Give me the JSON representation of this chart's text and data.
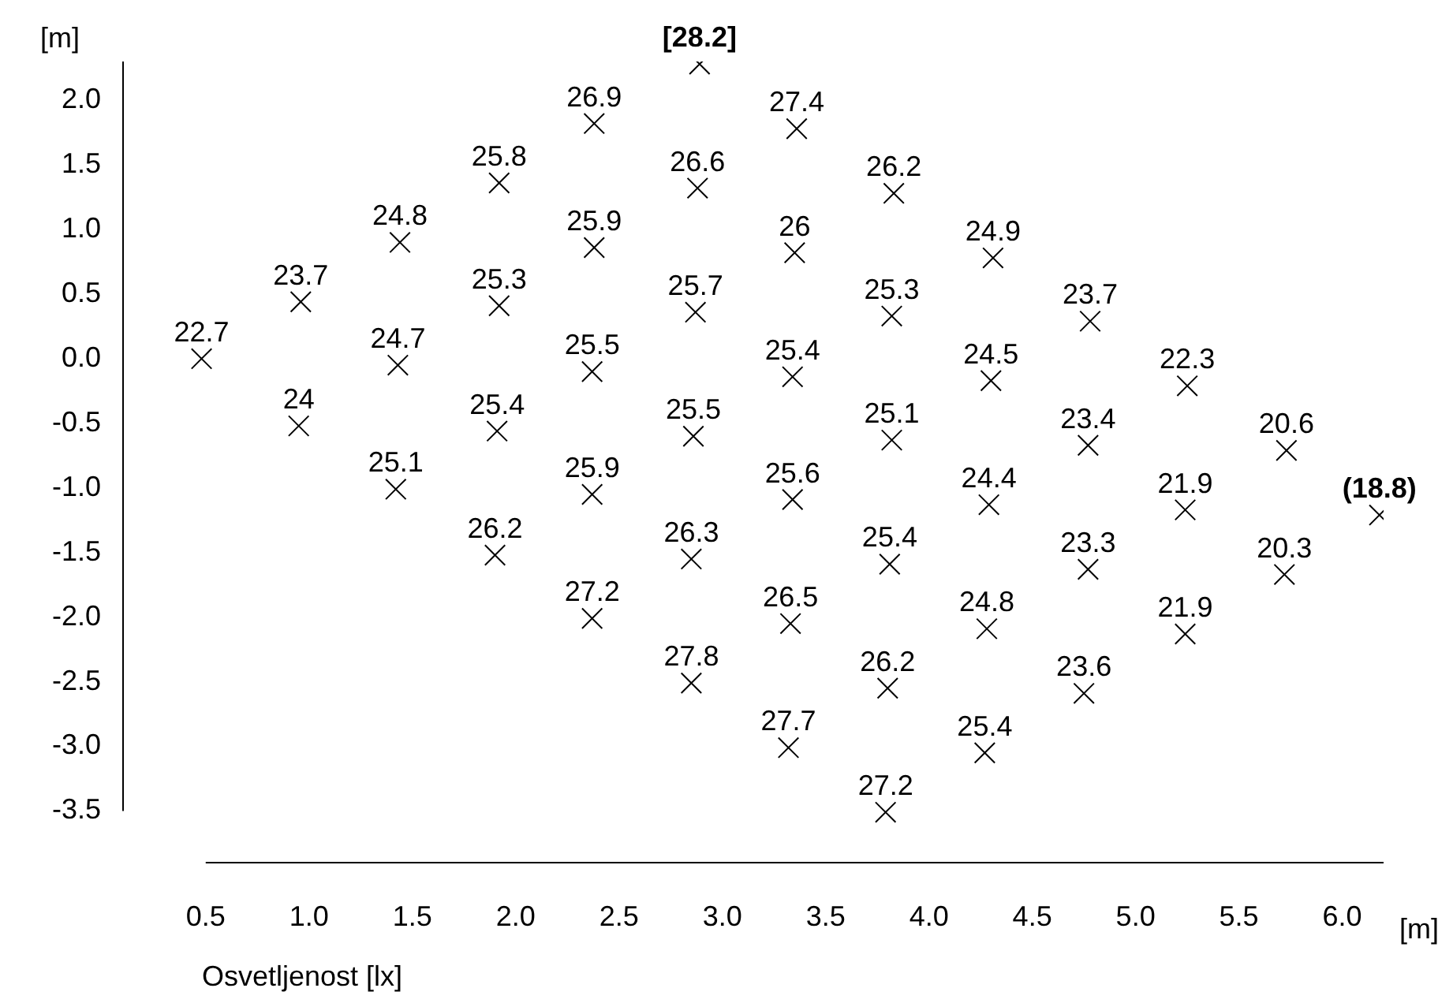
{
  "chart_data": {
    "type": "scatter",
    "xlabel": "[m]",
    "ylabel": "[m]",
    "color": "#000000",
    "grid": false,
    "legend": false,
    "marker": "cross",
    "xlim": [
      0.1,
      6.2
    ],
    "ylim": [
      -3.9,
      2.3
    ],
    "xticks": [
      {
        "value": 0.5,
        "label": "0.5"
      },
      {
        "value": 1,
        "label": "1.0"
      },
      {
        "value": 1.5,
        "label": "1.5"
      },
      {
        "value": 2,
        "label": "2.0"
      },
      {
        "value": 2.5,
        "label": "2.5"
      },
      {
        "value": 3,
        "label": "3.0"
      },
      {
        "value": 3.5,
        "label": "3.5"
      },
      {
        "value": 4,
        "label": "4.0"
      },
      {
        "value": 4.5,
        "label": "4.5"
      },
      {
        "value": 5,
        "label": "5.0"
      },
      {
        "value": 5.5,
        "label": "5.5"
      },
      {
        "value": 6,
        "label": "6.0"
      }
    ],
    "yticks": [
      {
        "value": -3.5,
        "label": "-3.5"
      },
      {
        "value": -3,
        "label": "-3.0"
      },
      {
        "value": -2.5,
        "label": "-2.5"
      },
      {
        "value": -2,
        "label": "-2.0"
      },
      {
        "value": -1.5,
        "label": "-1.5"
      },
      {
        "value": -1,
        "label": "-1.0"
      },
      {
        "value": -0.5,
        "label": "-0.5"
      },
      {
        "value": 0,
        "label": "0.0"
      },
      {
        "value": 0.5,
        "label": "0.5"
      },
      {
        "value": 1,
        "label": "1.0"
      },
      {
        "value": 1.5,
        "label": "1.5"
      },
      {
        "value": 2,
        "label": "2.0"
      }
    ],
    "x": [
      0.48,
      0.96,
      0.95,
      1.44,
      1.43,
      1.42,
      1.92,
      1.92,
      1.91,
      1.9,
      2.38,
      2.38,
      2.37,
      2.37,
      2.37,
      2.89,
      2.88,
      2.87,
      2.86,
      2.85,
      2.85,
      3.36,
      3.35,
      3.34,
      3.34,
      3.33,
      3.32,
      3.83,
      3.82,
      3.82,
      3.81,
      3.8,
      3.79,
      4.31,
      4.3,
      4.29,
      4.28,
      4.27,
      4.78,
      4.77,
      4.77,
      4.75,
      5.25,
      5.24,
      5.24,
      5.73,
      5.72,
      6.18
    ],
    "values": [
      0.0,
      0.44,
      -0.52,
      0.9,
      -0.05,
      -1.01,
      1.36,
      0.41,
      -0.56,
      -1.52,
      1.82,
      0.86,
      -0.1,
      -1.05,
      -2.01,
      2.28,
      1.32,
      0.36,
      -0.6,
      -1.55,
      -2.51,
      1.78,
      0.82,
      -0.14,
      -1.09,
      -2.05,
      -3.01,
      1.28,
      0.33,
      -0.63,
      -1.59,
      -2.55,
      -3.51,
      0.78,
      -0.17,
      -1.13,
      -2.09,
      -3.05,
      0.29,
      -0.67,
      -1.63,
      -2.59,
      -0.21,
      -1.17,
      -2.13,
      -0.71,
      -1.67,
      -1.21
    ],
    "annotations": [
      "Osvetljenost [lx]",
      {
        "text": "22.7",
        "x": 0.48,
        "y": 0.0
      },
      {
        "text": "23.7",
        "x": 0.96,
        "y": 0.44
      },
      {
        "text": "24",
        "x": 0.95,
        "y": -0.52
      },
      {
        "text": "24.8",
        "x": 1.44,
        "y": 0.9
      },
      {
        "text": "24.7",
        "x": 1.43,
        "y": -0.05
      },
      {
        "text": "25.1",
        "x": 1.42,
        "y": -1.01
      },
      {
        "text": "25.8",
        "x": 1.92,
        "y": 1.36
      },
      {
        "text": "25.3",
        "x": 1.92,
        "y": 0.41
      },
      {
        "text": "25.4",
        "x": 1.91,
        "y": -0.56
      },
      {
        "text": "26.2",
        "x": 1.9,
        "y": -1.52
      },
      {
        "text": "26.9",
        "x": 2.38,
        "y": 1.82
      },
      {
        "text": "25.9",
        "x": 2.38,
        "y": 0.86
      },
      {
        "text": "25.5",
        "x": 2.37,
        "y": -0.1
      },
      {
        "text": "25.9",
        "x": 2.37,
        "y": -1.05
      },
      {
        "text": "27.2",
        "x": 2.37,
        "y": -2.01
      },
      {
        "text": "[28.2]",
        "x": 2.89,
        "y": 2.28
      },
      {
        "text": "26.6",
        "x": 2.88,
        "y": 1.32
      },
      {
        "text": "25.7",
        "x": 2.87,
        "y": 0.36
      },
      {
        "text": "25.5",
        "x": 2.86,
        "y": -0.6
      },
      {
        "text": "26.3",
        "x": 2.85,
        "y": -1.55
      },
      {
        "text": "27.8",
        "x": 2.85,
        "y": -2.51
      },
      {
        "text": "27.4",
        "x": 3.36,
        "y": 1.78
      },
      {
        "text": "26",
        "x": 3.35,
        "y": 0.82
      },
      {
        "text": "25.4",
        "x": 3.34,
        "y": -0.14
      },
      {
        "text": "25.6",
        "x": 3.34,
        "y": -1.09
      },
      {
        "text": "26.5",
        "x": 3.33,
        "y": -2.05
      },
      {
        "text": "27.7",
        "x": 3.32,
        "y": -3.01
      },
      {
        "text": "26.2",
        "x": 3.83,
        "y": 1.28
      },
      {
        "text": "25.3",
        "x": 3.82,
        "y": 0.33
      },
      {
        "text": "25.1",
        "x": 3.82,
        "y": -0.63
      },
      {
        "text": "25.4",
        "x": 3.81,
        "y": -1.59
      },
      {
        "text": "26.2",
        "x": 3.8,
        "y": -2.55
      },
      {
        "text": "27.2",
        "x": 3.79,
        "y": -3.51
      },
      {
        "text": "24.9",
        "x": 4.31,
        "y": 0.78
      },
      {
        "text": "24.5",
        "x": 4.3,
        "y": -0.17
      },
      {
        "text": "24.4",
        "x": 4.29,
        "y": -1.13
      },
      {
        "text": "24.8",
        "x": 4.28,
        "y": -2.09
      },
      {
        "text": "25.4",
        "x": 4.27,
        "y": -3.05
      },
      {
        "text": "23.7",
        "x": 4.78,
        "y": 0.29
      },
      {
        "text": "23.4",
        "x": 4.77,
        "y": -0.67
      },
      {
        "text": "23.3",
        "x": 4.77,
        "y": -1.63
      },
      {
        "text": "23.6",
        "x": 4.75,
        "y": -2.59
      },
      {
        "text": "22.3",
        "x": 5.25,
        "y": -0.21
      },
      {
        "text": "21.9",
        "x": 5.24,
        "y": -1.17
      },
      {
        "text": "21.9",
        "x": 5.24,
        "y": -2.13
      },
      {
        "text": "20.6",
        "x": 5.73,
        "y": -0.71
      },
      {
        "text": "20.3",
        "x": 5.72,
        "y": -1.67
      },
      {
        "text": "(18.8)",
        "x": 6.18,
        "y": -1.21
      }
    ]
  }
}
